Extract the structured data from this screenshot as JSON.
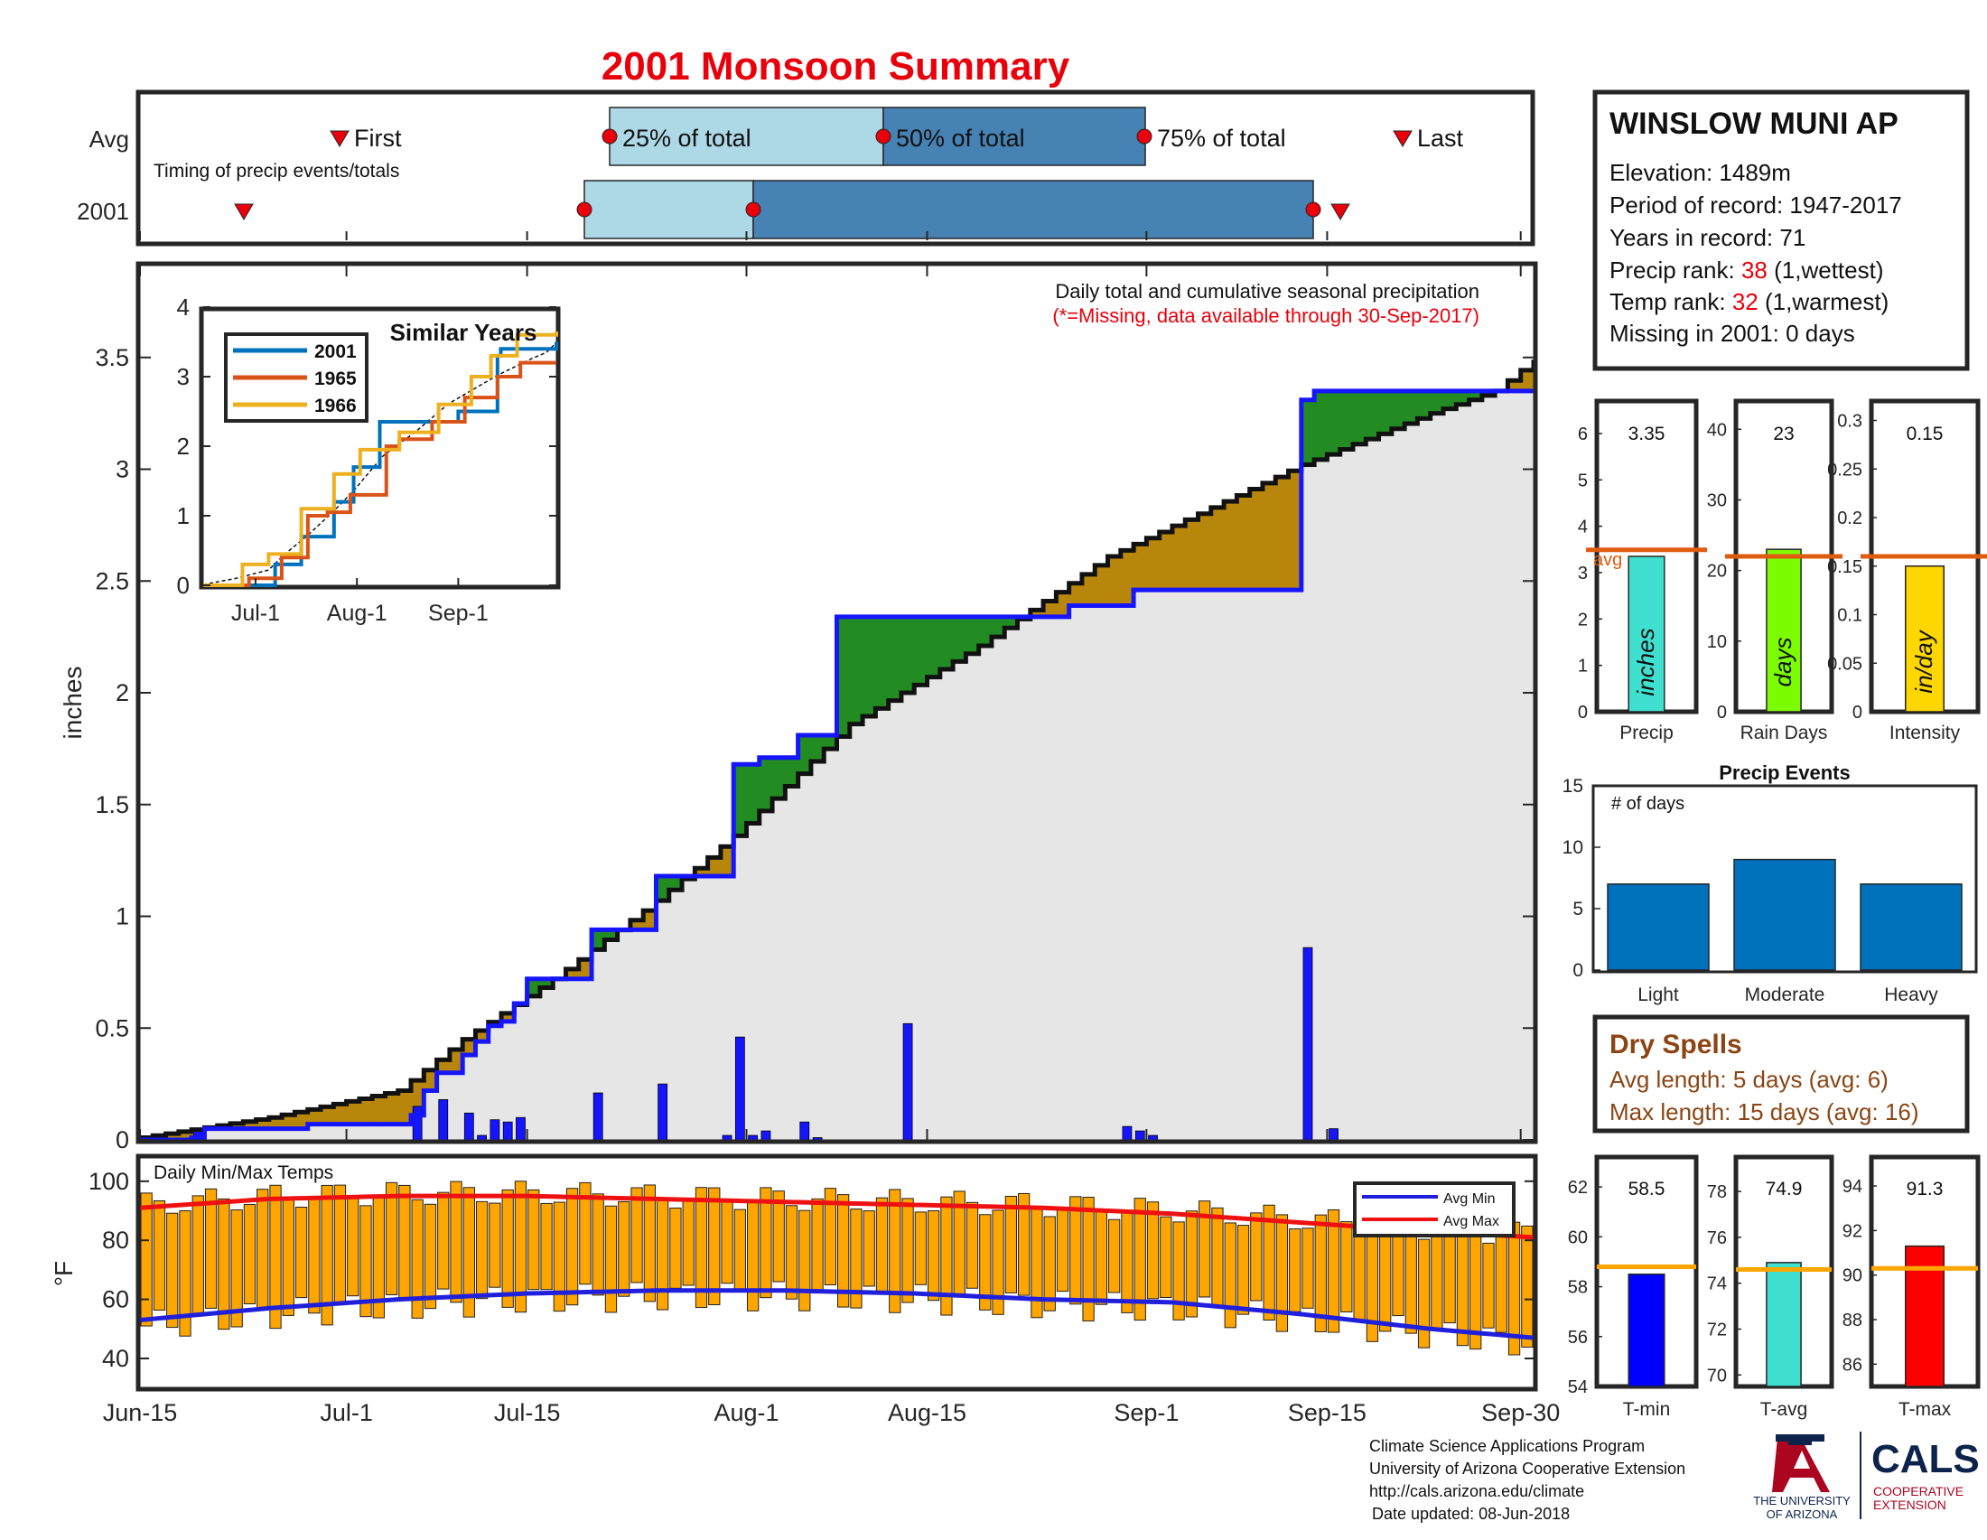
{
  "title": "2001 Monsoon Summary",
  "colors": {
    "title": "#e8000b",
    "frame": "#262626",
    "above_avg": "#228b22",
    "below_avg": "#b8860b",
    "background_fill": "#e6e6e6",
    "current_line": "#1515ff",
    "avg_line": "#111111",
    "bars": "#1515ff",
    "temp_bars": "#ffa500",
    "avg_min": "#1f1fdc",
    "avg_max": "#ee1111",
    "avg_marker": "#e05a10",
    "quartile_light": "#add8e6",
    "quartile_dark": "#4682b4",
    "marker_red": "#e8000b",
    "dry_spells": "#8b4513",
    "rank_red": "#e8000b"
  },
  "timing": {
    "row_labels": [
      "Avg",
      "2001"
    ],
    "caption": "Timing of precip events/totals",
    "labels": {
      "first": "First",
      "q25": "25% of total",
      "q50": "50% of total",
      "q75": "75% of total",
      "last": "Last"
    }
  },
  "station": {
    "name": "WINSLOW MUNI AP",
    "elevation": "Elevation: 1489m",
    "period": "Period of record: 1947-2017",
    "years": "Years in record: 71",
    "precip_rank_prefix": "Precip rank:",
    "precip_rank": "38",
    "precip_rank_suffix": "(1,wettest)",
    "temp_rank_prefix": "Temp rank:",
    "temp_rank": "32",
    "temp_rank_suffix": "(1,warmest)",
    "missing": "Missing in 2001: 0 days"
  },
  "main_plot": {
    "note": "Daily total and cumulative seasonal precipitation",
    "note_missing": "(*=Missing, data available through 30-Sep-2017)",
    "ylabel": "inches",
    "xticks": [
      "Jun-15",
      "Jul-1",
      "Jul-15",
      "Aug-1",
      "Aug-15",
      "Sep-1",
      "Sep-15",
      "Sep-30"
    ],
    "yticks": [
      "0",
      "0.5",
      "1",
      "1.5",
      "2",
      "2.5",
      "3",
      "3.5"
    ]
  },
  "inset": {
    "title": "Similar Years",
    "xticks": [
      "Jul-1",
      "Aug-1",
      "Sep-1"
    ],
    "yticks": [
      "0",
      "1",
      "2",
      "3",
      "4"
    ],
    "legend": [
      "2001",
      "1965",
      "1966"
    ]
  },
  "summary_bars": {
    "precip": {
      "value": "3.35",
      "label": "Precip",
      "unit": "inches",
      "avg_label": "avg"
    },
    "rain_days": {
      "value": "23",
      "label": "Rain Days",
      "unit": "days"
    },
    "intensity": {
      "value": "0.15",
      "label": "Intensity",
      "unit": "in/day"
    },
    "precip_yticks": [
      "0",
      "1",
      "2",
      "3",
      "4",
      "5",
      "6"
    ],
    "rain_yticks": [
      "0",
      "10",
      "20",
      "30",
      "40"
    ],
    "intensity_yticks": [
      "0",
      "0.05",
      "0.1",
      "0.15",
      "0.2",
      "0.25",
      "0.3"
    ]
  },
  "events": {
    "title": "Precip Events",
    "ylabel": "# of days",
    "categories": [
      "Light",
      "Moderate",
      "Heavy"
    ],
    "yticks": [
      "0",
      "5",
      "10",
      "15"
    ]
  },
  "dry_spells": {
    "title": "Dry Spells",
    "avg_length": "Avg length: 5 days (avg: 6)",
    "max_length": "Max length: 15 days (avg: 16)"
  },
  "temps": {
    "title": "Daily Min/Max Temps",
    "ylabel": "°F",
    "yticks": [
      "40",
      "60",
      "80",
      "100"
    ],
    "legend": [
      "Avg Min",
      "Avg Max"
    ]
  },
  "temp_summary": {
    "tmin": {
      "value": "58.5",
      "label": "T-min"
    },
    "tavg": {
      "value": "74.9",
      "label": "T-avg"
    },
    "tmax": {
      "value": "91.3",
      "label": "T-max"
    },
    "tmin_yticks": [
      "54",
      "56",
      "58",
      "60",
      "62"
    ],
    "tavg_yticks": [
      "70",
      "72",
      "74",
      "76",
      "78"
    ],
    "tmax_yticks": [
      "86",
      "88",
      "90",
      "92",
      "94"
    ]
  },
  "footer": {
    "line1": "Climate Science Applications Program",
    "line2": "University of Arizona Cooperative Extension",
    "line3": "http://cals.arizona.edu/climate",
    "line4": "Date updated: 08-Jun-2018",
    "ua_line1": "THE UNIVERSITY",
    "ua_line2": "OF ARIZONA",
    "cals": "CALS",
    "cals_sub1": "COOPERATIVE",
    "cals_sub2": "EXTENSION"
  },
  "chart_data": [
    {
      "type": "area",
      "title": "Daily total and cumulative seasonal precipitation",
      "ylabel": "inches",
      "xlim": [
        "Jun-15",
        "Sep-30"
      ],
      "ylim": [
        0,
        4
      ],
      "season_days": 108,
      "day0": "Jun-15",
      "cumulative_2001_changes": [
        [
          0,
          0.0
        ],
        [
          4,
          0.01
        ],
        [
          5,
          0.05
        ],
        [
          13,
          0.07
        ],
        [
          21,
          0.11
        ],
        [
          22,
          0.22
        ],
        [
          23,
          0.3
        ],
        [
          25,
          0.38
        ],
        [
          26,
          0.44
        ],
        [
          27,
          0.51
        ],
        [
          28,
          0.53
        ],
        [
          29,
          0.61
        ],
        [
          30,
          0.72
        ],
        [
          35,
          0.94
        ],
        [
          40,
          1.18
        ],
        [
          46,
          1.68
        ],
        [
          48,
          1.71
        ],
        [
          51,
          1.81
        ],
        [
          54,
          2.34
        ],
        [
          72,
          2.39
        ],
        [
          77,
          2.46
        ],
        [
          90,
          3.31
        ],
        [
          91,
          3.35
        ]
      ],
      "cumulative_avg_points": [
        [
          0,
          0.01
        ],
        [
          10,
          0.1
        ],
        [
          20,
          0.22
        ],
        [
          25,
          0.45
        ],
        [
          32,
          0.72
        ],
        [
          40,
          1.07
        ],
        [
          46,
          1.36
        ],
        [
          55,
          1.86
        ],
        [
          65,
          2.21
        ],
        [
          75,
          2.61
        ],
        [
          90,
          3.02
        ],
        [
          100,
          3.25
        ],
        [
          105,
          3.35
        ],
        [
          108,
          3.49
        ]
      ],
      "daily_2001": [
        [
          4,
          0.05
        ],
        [
          21,
          0.15
        ],
        [
          23,
          0.18
        ],
        [
          25,
          0.12
        ],
        [
          26,
          0.02
        ],
        [
          27,
          0.09
        ],
        [
          28,
          0.08
        ],
        [
          29,
          0.1
        ],
        [
          35,
          0.21
        ],
        [
          40,
          0.25
        ],
        [
          45,
          0.02
        ],
        [
          46,
          0.46
        ],
        [
          47,
          0.02
        ],
        [
          48,
          0.04
        ],
        [
          51,
          0.08
        ],
        [
          52,
          0.01
        ],
        [
          59,
          0.52
        ],
        [
          76,
          0.06
        ],
        [
          77,
          0.04
        ],
        [
          78,
          0.02
        ],
        [
          90,
          0.86
        ],
        [
          92,
          0.05
        ]
      ]
    },
    {
      "type": "line",
      "title": "Similar Years",
      "xlim": [
        "Jun-15",
        "Sep-30"
      ],
      "ylim": [
        0,
        4
      ],
      "series": [
        {
          "name": "2001",
          "points": [
            [
              0,
              0
            ],
            [
              10,
              0
            ],
            [
              22,
              0.3
            ],
            [
              30,
              0.7
            ],
            [
              40,
              1.2
            ],
            [
              46,
              1.7
            ],
            [
              54,
              2.35
            ],
            [
              78,
              2.5
            ],
            [
              90,
              3.3
            ],
            [
              91,
              3.4
            ],
            [
              108,
              3.5
            ]
          ]
        },
        {
          "name": "1965",
          "points": [
            [
              0,
              0
            ],
            [
              14,
              0.1
            ],
            [
              24,
              0.4
            ],
            [
              32,
              1.0
            ],
            [
              38,
              1.05
            ],
            [
              45,
              1.3
            ],
            [
              56,
              2.0
            ],
            [
              60,
              2.1
            ],
            [
              70,
              2.35
            ],
            [
              80,
              2.7
            ],
            [
              90,
              3.0
            ],
            [
              97,
              3.2
            ],
            [
              108,
              3.2
            ]
          ]
        },
        {
          "name": "1966",
          "points": [
            [
              0,
              0
            ],
            [
              12,
              0.3
            ],
            [
              20,
              0.45
            ],
            [
              30,
              1.1
            ],
            [
              40,
              1.6
            ],
            [
              48,
              1.95
            ],
            [
              60,
              2.2
            ],
            [
              72,
              2.6
            ],
            [
              82,
              3.0
            ],
            [
              88,
              3.3
            ],
            [
              96,
              3.6
            ],
            [
              108,
              3.65
            ]
          ]
        }
      ]
    },
    {
      "type": "bar",
      "categories": [
        "Precip",
        "Rain Days",
        "Intensity"
      ],
      "values": [
        3.35,
        23,
        0.15
      ],
      "averages": [
        3.49,
        22,
        0.16
      ],
      "ylims": [
        [
          0,
          6.7
        ],
        [
          0,
          44
        ],
        [
          0,
          0.32
        ]
      ]
    },
    {
      "type": "bar",
      "title": "Precip Events",
      "ylabel": "# of days",
      "categories": [
        "Light",
        "Moderate",
        "Heavy"
      ],
      "values": [
        7,
        9,
        7
      ],
      "ylim": [
        0,
        15
      ]
    },
    {
      "type": "bar",
      "title": "Daily Min/Max Temps",
      "ylabel": "°F",
      "ylim": [
        32,
        108
      ],
      "series": [
        {
          "name": "Avg Min",
          "points": [
            [
              0,
              53
            ],
            [
              10,
              57
            ],
            [
              20,
              60
            ],
            [
              30,
              62
            ],
            [
              40,
              63
            ],
            [
              50,
              63
            ],
            [
              60,
              62
            ],
            [
              70,
              60
            ],
            [
              80,
              59
            ],
            [
              90,
              55
            ],
            [
              100,
              50
            ],
            [
              108,
              47
            ]
          ]
        },
        {
          "name": "Avg Max",
          "points": [
            [
              0,
              91
            ],
            [
              10,
              94
            ],
            [
              20,
              95
            ],
            [
              30,
              95
            ],
            [
              40,
              94
            ],
            [
              50,
              93
            ],
            [
              60,
              92
            ],
            [
              70,
              91
            ],
            [
              80,
              89
            ],
            [
              90,
              86
            ],
            [
              100,
              83
            ],
            [
              108,
              81
            ]
          ]
        }
      ]
    },
    {
      "type": "bar",
      "categories": [
        "T-min",
        "T-avg",
        "T-max"
      ],
      "values": [
        58.5,
        74.9,
        91.3
      ],
      "averages": [
        58.8,
        74.6,
        90.3
      ],
      "ylims": [
        [
          54,
          63.2
        ],
        [
          69.5,
          79.5
        ],
        [
          85,
          95.3
        ]
      ]
    }
  ]
}
